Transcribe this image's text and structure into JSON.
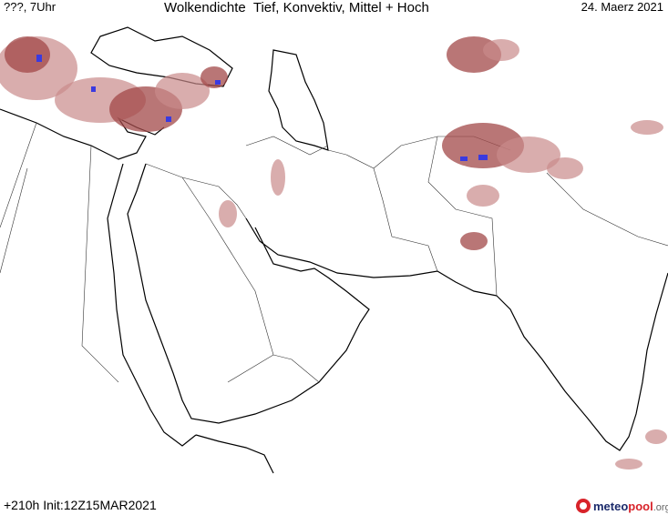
{
  "header": {
    "left": "???, 7Uhr",
    "title": "Wolkendichte  Tief, Konvektiv, Mittel + Hoch",
    "date": "24. Maerz 2021"
  },
  "footer": {
    "run": "+210h Init:12Z15MAR2021",
    "logo": {
      "meteo": "meteo",
      "pool": "pool",
      "tld": ".org"
    }
  }
}
